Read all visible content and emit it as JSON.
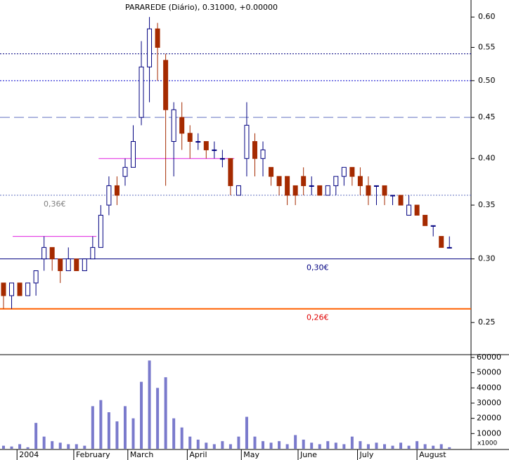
{
  "chart_data": [
    {
      "type": "candlestick",
      "title": "PARAREDE (Diário), 0.31000, +0.00000",
      "log_scale": true,
      "x": [
        0,
        3,
        6,
        9,
        12,
        15,
        18,
        21,
        24,
        27,
        30,
        33,
        36,
        39,
        42,
        45,
        48,
        51,
        54,
        57,
        60,
        63,
        66,
        69,
        72,
        75,
        78,
        81,
        84,
        87,
        90,
        93,
        96,
        99,
        102,
        105,
        108,
        111,
        114,
        117,
        120,
        123,
        126,
        129,
        132,
        135,
        138,
        141,
        144,
        147,
        150,
        153,
        156,
        159,
        162,
        165
      ],
      "open": [
        0.28,
        0.27,
        0.28,
        0.27,
        0.28,
        0.3,
        0.31,
        0.3,
        0.29,
        0.3,
        0.29,
        0.3,
        0.31,
        0.35,
        0.37,
        0.38,
        0.39,
        0.45,
        0.52,
        0.58,
        0.53,
        0.42,
        0.45,
        0.43,
        0.42,
        0.42,
        0.41,
        0.4,
        0.4,
        0.36,
        0.4,
        0.42,
        0.4,
        0.39,
        0.38,
        0.38,
        0.37,
        0.38,
        0.37,
        0.37,
        0.36,
        0.37,
        0.38,
        0.39,
        0.38,
        0.37,
        0.37,
        0.37,
        0.36,
        0.36,
        0.34,
        0.35,
        0.34,
        0.33,
        0.32,
        0.31
      ],
      "high": [
        0.28,
        0.28,
        0.28,
        0.28,
        0.29,
        0.32,
        0.31,
        0.3,
        0.31,
        0.3,
        0.3,
        0.32,
        0.35,
        0.38,
        0.38,
        0.4,
        0.44,
        0.56,
        0.6,
        0.59,
        0.54,
        0.47,
        0.47,
        0.44,
        0.43,
        0.42,
        0.42,
        0.41,
        0.4,
        0.37,
        0.47,
        0.43,
        0.42,
        0.39,
        0.38,
        0.38,
        0.37,
        0.39,
        0.38,
        0.37,
        0.37,
        0.38,
        0.39,
        0.39,
        0.39,
        0.38,
        0.37,
        0.37,
        0.36,
        0.36,
        0.36,
        0.35,
        0.34,
        0.33,
        0.32,
        0.32
      ],
      "low": [
        0.26,
        0.26,
        0.27,
        0.27,
        0.27,
        0.29,
        0.29,
        0.28,
        0.29,
        0.29,
        0.29,
        0.3,
        0.31,
        0.34,
        0.35,
        0.37,
        0.39,
        0.44,
        0.47,
        0.5,
        0.37,
        0.38,
        0.41,
        0.4,
        0.41,
        0.4,
        0.4,
        0.39,
        0.36,
        0.36,
        0.38,
        0.38,
        0.38,
        0.37,
        0.36,
        0.35,
        0.35,
        0.36,
        0.36,
        0.36,
        0.36,
        0.36,
        0.37,
        0.37,
        0.36,
        0.35,
        0.35,
        0.35,
        0.35,
        0.35,
        0.34,
        0.34,
        0.33,
        0.32,
        0.31,
        0.31
      ],
      "close": [
        0.27,
        0.28,
        0.27,
        0.28,
        0.29,
        0.31,
        0.3,
        0.29,
        0.3,
        0.29,
        0.3,
        0.31,
        0.34,
        0.37,
        0.36,
        0.39,
        0.42,
        0.52,
        0.58,
        0.55,
        0.46,
        0.46,
        0.43,
        0.42,
        0.42,
        0.41,
        0.41,
        0.4,
        0.37,
        0.37,
        0.44,
        0.4,
        0.41,
        0.38,
        0.37,
        0.36,
        0.36,
        0.37,
        0.37,
        0.36,
        0.37,
        0.38,
        0.39,
        0.38,
        0.37,
        0.36,
        0.37,
        0.36,
        0.36,
        0.35,
        0.35,
        0.34,
        0.33,
        0.33,
        0.31,
        0.31
      ],
      "up_color": "#ffffff",
      "up_edge": "#000080",
      "down_color": "#a52a00",
      "xlim": [
        -1.3,
        173
      ],
      "ylim": [
        0.228,
        0.63
      ],
      "yticks": [
        {
          "value": 0.25,
          "label": "0.25"
        },
        {
          "value": 0.3,
          "label": "0.30"
        },
        {
          "value": 0.35,
          "label": "0.35"
        },
        {
          "value": 0.4,
          "label": "0.40"
        },
        {
          "value": 0.45,
          "label": "0.45"
        },
        {
          "value": 0.5,
          "label": "0.50"
        },
        {
          "value": 0.55,
          "label": "0.55"
        },
        {
          "value": 0.6,
          "label": "0.60"
        }
      ],
      "reference_lines": [
        {
          "value": 0.54,
          "color": "#000080",
          "style": "dotted"
        },
        {
          "value": 0.5,
          "color": "#0000cc",
          "style": "dotted"
        },
        {
          "value": 0.45,
          "color": "#6070c0",
          "style": "dashed"
        },
        {
          "value": 0.36,
          "color": "#6070c0",
          "style": "dotted",
          "label": "0,36€",
          "label_color": "#808080"
        },
        {
          "value": 0.3,
          "color": "#000080",
          "style": "solid",
          "label": "0,30€",
          "label_color": "#000080"
        },
        {
          "value": 0.26,
          "color": "#ff6000",
          "style": "solid",
          "label": "0,26€",
          "label_color": "#e00000"
        }
      ],
      "segments": [
        {
          "value": 0.32,
          "x": [
            3.4,
            34.4
          ],
          "color": "#e020e0"
        },
        {
          "value": 0.4,
          "x": [
            35.2,
            85.4
          ],
          "color": "#e020e0"
        }
      ]
    },
    {
      "type": "bar",
      "color": "#7a7acc",
      "note": "x1000",
      "x": [
        0,
        3,
        6,
        9,
        12,
        15,
        18,
        21,
        24,
        27,
        30,
        33,
        36,
        39,
        42,
        45,
        48,
        51,
        54,
        57,
        60,
        63,
        66,
        69,
        72,
        75,
        78,
        81,
        84,
        87,
        90,
        93,
        96,
        99,
        102,
        105,
        108,
        111,
        114,
        117,
        120,
        123,
        126,
        129,
        132,
        135,
        138,
        141,
        144,
        147,
        150,
        153,
        156,
        159,
        162,
        165
      ],
      "values": [
        2000,
        1500,
        3000,
        1000,
        17000,
        8000,
        5000,
        4000,
        3000,
        3000,
        2000,
        28000,
        32000,
        24000,
        18000,
        28000,
        20000,
        44000,
        58000,
        40000,
        47000,
        20000,
        14000,
        8000,
        6000,
        4000,
        3000,
        5000,
        3000,
        8000,
        21000,
        8000,
        5000,
        4000,
        5000,
        3000,
        9000,
        6000,
        4000,
        3000,
        5000,
        4000,
        3000,
        8000,
        5000,
        3000,
        4000,
        3000,
        2000,
        4000,
        2000,
        5000,
        3000,
        2000,
        3000,
        1000
      ],
      "xlim": [
        -1.3,
        173
      ],
      "ylim": [
        0,
        60000
      ],
      "yticks": [
        10000,
        20000,
        30000,
        40000,
        50000,
        60000
      ],
      "xticks": [
        {
          "value": 5,
          "label": "2004"
        },
        {
          "value": 26,
          "label": "February"
        },
        {
          "value": 46,
          "label": "March"
        },
        {
          "value": 68,
          "label": "April"
        },
        {
          "value": 88,
          "label": "May"
        },
        {
          "value": 109,
          "label": "June"
        },
        {
          "value": 131,
          "label": "July"
        },
        {
          "value": 153,
          "label": "August"
        }
      ]
    }
  ]
}
